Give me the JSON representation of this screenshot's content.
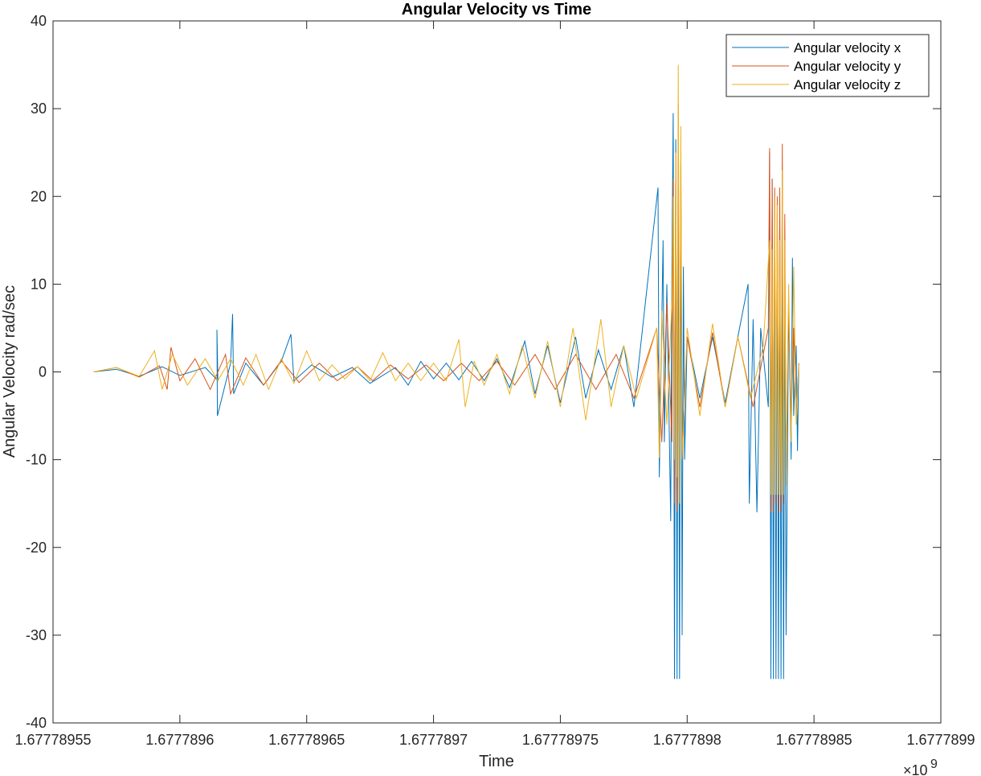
{
  "chart_data": {
    "type": "line",
    "title": "Angular Velocity vs Time",
    "xlabel": "Time",
    "ylabel": "Angular Velocity rad/sec",
    "x_exponent_base": "×10",
    "x_exponent_power": "9",
    "xlim": [
      1.67778955,
      1.6777899
    ],
    "ylim": [
      -40,
      40
    ],
    "x_ticks": [
      {
        "value": 1.67778955,
        "label": "1.67778955"
      },
      {
        "value": 1.6777896,
        "label": "1.6777896"
      },
      {
        "value": 1.67778965,
        "label": "1.67778965"
      },
      {
        "value": 1.6777897,
        "label": "1.6777897"
      },
      {
        "value": 1.67778975,
        "label": "1.67778975"
      },
      {
        "value": 1.6777898,
        "label": "1.6777898"
      },
      {
        "value": 1.67778985,
        "label": "1.67778985"
      },
      {
        "value": 1.6777899,
        "label": "1.6777899"
      }
    ],
    "y_ticks": [
      {
        "value": 40,
        "label": "40"
      },
      {
        "value": 30,
        "label": "30"
      },
      {
        "value": 20,
        "label": "20"
      },
      {
        "value": 10,
        "label": "10"
      },
      {
        "value": 0,
        "label": "0"
      },
      {
        "value": -10,
        "label": "-10"
      },
      {
        "value": -20,
        "label": "-20"
      },
      {
        "value": -30,
        "label": "-30"
      },
      {
        "value": -40,
        "label": "-40"
      }
    ],
    "grid": false,
    "legend_position": "top-right",
    "series": [
      {
        "name": "Angular velocity x",
        "color": "#0072BD",
        "points": [
          [
            1.677789566,
            0.0
          ],
          [
            1.677789575,
            0.3
          ],
          [
            1.677789584,
            -0.5
          ],
          [
            1.677789593,
            0.6
          ],
          [
            1.6777896,
            -0.4
          ],
          [
            1.67778961,
            0.5
          ],
          [
            1.677789615,
            -1.0
          ],
          [
            1.6777896146,
            4.8
          ],
          [
            1.6777896148,
            -5.0
          ],
          [
            1.67778962,
            1.0
          ],
          [
            1.6777896208,
            6.6
          ],
          [
            1.6777896212,
            -2.5
          ],
          [
            1.677789626,
            1.0
          ],
          [
            1.677789633,
            -1.5
          ],
          [
            1.67778964,
            1.2
          ],
          [
            1.6777896438,
            4.3
          ],
          [
            1.677789645,
            -1.0
          ],
          [
            1.677789652,
            0.8
          ],
          [
            1.67778966,
            -0.6
          ],
          [
            1.677789668,
            0.5
          ],
          [
            1.677789675,
            -1.3
          ],
          [
            1.677789685,
            0.5
          ],
          [
            1.67778969,
            -1.5
          ],
          [
            1.677789695,
            1.2
          ],
          [
            1.6777897,
            -0.8
          ],
          [
            1.677789705,
            1.0
          ],
          [
            1.67778971,
            -0.9
          ],
          [
            1.677789715,
            1.2
          ],
          [
            1.67778972,
            -1.0
          ],
          [
            1.677789725,
            1.5
          ],
          [
            1.67778973,
            -1.8
          ],
          [
            1.677789736,
            3.5
          ],
          [
            1.67778974,
            -2.5
          ],
          [
            1.677789745,
            3.0
          ],
          [
            1.67778975,
            -3.5
          ],
          [
            1.677789756,
            4.0
          ],
          [
            1.67778976,
            -3.0
          ],
          [
            1.677789765,
            2.5
          ],
          [
            1.67778977,
            -2.0
          ],
          [
            1.677789775,
            3.0
          ],
          [
            1.677789779,
            -4.0
          ],
          [
            1.6777897885,
            21.0
          ],
          [
            1.677789789,
            -12.0
          ],
          [
            1.6777897905,
            15.0
          ],
          [
            1.677789791,
            -8.0
          ],
          [
            1.677789792,
            10.0
          ],
          [
            1.6777897935,
            -17.0
          ],
          [
            1.677789794,
            12.0
          ],
          [
            1.6777897945,
            29.5
          ],
          [
            1.677789795,
            -35.0
          ],
          [
            1.6777897955,
            26.5
          ],
          [
            1.677789796,
            -35.0
          ],
          [
            1.6777897965,
            26.5
          ],
          [
            1.677789797,
            -35.0
          ],
          [
            1.6777897975,
            23.5
          ],
          [
            1.677789798,
            -30.0
          ],
          [
            1.6777897985,
            12.0
          ],
          [
            1.677789799,
            -10.0
          ],
          [
            1.6777898,
            4.0
          ],
          [
            1.677789805,
            -3.0
          ],
          [
            1.67778981,
            4.0
          ],
          [
            1.677789815,
            -3.5
          ],
          [
            1.67778982,
            4.0
          ],
          [
            1.677789824,
            10.0
          ],
          [
            1.6777898245,
            -15.0
          ],
          [
            1.677789826,
            6.0
          ],
          [
            1.6777898275,
            -16.0
          ],
          [
            1.677789829,
            5.0
          ],
          [
            1.677789832,
            -4.0
          ],
          [
            1.6777898325,
            25.0
          ],
          [
            1.677789833,
            -35.0
          ],
          [
            1.6777898335,
            22.0
          ],
          [
            1.677789834,
            -35.0
          ],
          [
            1.6777898345,
            20.0
          ],
          [
            1.677789835,
            -35.0
          ],
          [
            1.6777898355,
            18.0
          ],
          [
            1.677789836,
            -35.0
          ],
          [
            1.6777898365,
            17.0
          ],
          [
            1.677789837,
            -35.0
          ],
          [
            1.6777898375,
            15.0
          ],
          [
            1.677789838,
            -35.0
          ],
          [
            1.6777898385,
            12.0
          ],
          [
            1.677789839,
            -30.0
          ],
          [
            1.67778984,
            8.0
          ],
          [
            1.677789841,
            -10.0
          ],
          [
            1.6777898415,
            13.0
          ],
          [
            1.677789842,
            -5.0
          ],
          [
            1.677789843,
            3.0
          ],
          [
            1.6777898435,
            -9.0
          ],
          [
            1.677789844,
            1.0
          ]
        ]
      },
      {
        "name": "Angular velocity y",
        "color": "#D95319",
        "points": [
          [
            1.677789566,
            0.0
          ],
          [
            1.677789575,
            0.5
          ],
          [
            1.677789584,
            -0.6
          ],
          [
            1.677789592,
            0.7
          ],
          [
            1.677789595,
            -2.0
          ],
          [
            1.6777895965,
            2.8
          ],
          [
            1.6777896,
            -1.0
          ],
          [
            1.677789606,
            1.5
          ],
          [
            1.677789612,
            -2.0
          ],
          [
            1.677789618,
            2.0
          ],
          [
            1.67778962,
            -2.5
          ],
          [
            1.677789626,
            1.6
          ],
          [
            1.677789633,
            -1.5
          ],
          [
            1.67778964,
            1.3
          ],
          [
            1.677789647,
            -1.2
          ],
          [
            1.677789655,
            1.0
          ],
          [
            1.677789662,
            -1.0
          ],
          [
            1.67778967,
            0.6
          ],
          [
            1.677789676,
            -1.0
          ],
          [
            1.677789683,
            0.8
          ],
          [
            1.67778969,
            -0.8
          ],
          [
            1.677789697,
            0.8
          ],
          [
            1.677789704,
            -1.0
          ],
          [
            1.677789711,
            1.0
          ],
          [
            1.677789718,
            -1.0
          ],
          [
            1.677789725,
            1.2
          ],
          [
            1.677789732,
            -1.5
          ],
          [
            1.67778974,
            2.0
          ],
          [
            1.677789748,
            -2.0
          ],
          [
            1.677789756,
            2.0
          ],
          [
            1.677789764,
            -2.0
          ],
          [
            1.677789772,
            2.0
          ],
          [
            1.677789779,
            -3.0
          ],
          [
            1.677789788,
            5.0
          ],
          [
            1.67778979,
            -8.0
          ],
          [
            1.677789792,
            8.0
          ],
          [
            1.677789794,
            -8.0
          ],
          [
            1.6777897945,
            22.0
          ],
          [
            1.677789795,
            -15.0
          ],
          [
            1.6777897955,
            25.0
          ],
          [
            1.677789796,
            -16.0
          ],
          [
            1.6777897965,
            30.5
          ],
          [
            1.677789797,
            -15.0
          ],
          [
            1.6777897975,
            24.0
          ],
          [
            1.677789798,
            -10.0
          ],
          [
            1.6777898,
            4.0
          ],
          [
            1.677789805,
            -4.0
          ],
          [
            1.67778981,
            4.5
          ],
          [
            1.677789815,
            -4.0
          ],
          [
            1.67778982,
            4.0
          ],
          [
            1.677789826,
            -4.0
          ],
          [
            1.677789832,
            5.0
          ],
          [
            1.6777898325,
            25.5
          ],
          [
            1.677789833,
            -16.0
          ],
          [
            1.6777898335,
            22.0
          ],
          [
            1.677789834,
            -16.0
          ],
          [
            1.6777898345,
            21.0
          ],
          [
            1.677789835,
            -15.0
          ],
          [
            1.6777898355,
            20.0
          ],
          [
            1.677789836,
            -16.0
          ],
          [
            1.6777898365,
            21.0
          ],
          [
            1.677789837,
            -16.0
          ],
          [
            1.6777898375,
            26.0
          ],
          [
            1.677789838,
            -15.0
          ],
          [
            1.6777898385,
            18.0
          ],
          [
            1.677789839,
            -12.0
          ],
          [
            1.67778984,
            8.0
          ],
          [
            1.677789841,
            -6.0
          ],
          [
            1.677789842,
            5.0
          ],
          [
            1.677789843,
            -5.0
          ],
          [
            1.677789844,
            1.0
          ]
        ]
      },
      {
        "name": "Angular velocity z",
        "color": "#EDB120",
        "points": [
          [
            1.677789566,
            0.0
          ],
          [
            1.677789575,
            0.5
          ],
          [
            1.677789584,
            -0.5
          ],
          [
            1.67778959,
            2.4
          ],
          [
            1.677789593,
            -2.0
          ],
          [
            1.677789597,
            2.0
          ],
          [
            1.677789603,
            -1.5
          ],
          [
            1.67778961,
            1.5
          ],
          [
            1.677789615,
            -1.0
          ],
          [
            1.67778962,
            1.5
          ],
          [
            1.677789625,
            -1.5
          ],
          [
            1.67778963,
            2.0
          ],
          [
            1.677789635,
            -2.0
          ],
          [
            1.67778964,
            1.5
          ],
          [
            1.677789645,
            -1.3
          ],
          [
            1.67778965,
            2.4
          ],
          [
            1.677789655,
            -1.0
          ],
          [
            1.67778966,
            0.8
          ],
          [
            1.677789665,
            -0.8
          ],
          [
            1.67778967,
            0.6
          ],
          [
            1.677789675,
            -1.0
          ],
          [
            1.67778968,
            2.2
          ],
          [
            1.677789685,
            -1.0
          ],
          [
            1.67778969,
            1.0
          ],
          [
            1.677789695,
            -1.0
          ],
          [
            1.6777897,
            1.0
          ],
          [
            1.677789705,
            -1.0
          ],
          [
            1.67778971,
            3.7
          ],
          [
            1.6777897125,
            -4.0
          ],
          [
            1.677789716,
            1.2
          ],
          [
            1.67778972,
            -1.5
          ],
          [
            1.677789725,
            2.0
          ],
          [
            1.67778973,
            -2.5
          ],
          [
            1.677789735,
            3.0
          ],
          [
            1.67778974,
            -3.0
          ],
          [
            1.677789745,
            3.5
          ],
          [
            1.67778975,
            -4.0
          ],
          [
            1.677789755,
            5.0
          ],
          [
            1.67778976,
            -5.5
          ],
          [
            1.677789766,
            6.0
          ],
          [
            1.67778977,
            -4.0
          ],
          [
            1.677789775,
            3.0
          ],
          [
            1.67778978,
            -3.0
          ],
          [
            1.677789788,
            5.0
          ],
          [
            1.677789789,
            -9.8
          ],
          [
            1.67778979,
            7.0
          ],
          [
            1.677789792,
            -6.0
          ],
          [
            1.677789794,
            8.0
          ],
          [
            1.6777897945,
            20.0
          ],
          [
            1.677789795,
            -10.0
          ],
          [
            1.6777897955,
            25.0
          ],
          [
            1.677789796,
            -12.0
          ],
          [
            1.6777897965,
            35.0
          ],
          [
            1.677789797,
            -15.0
          ],
          [
            1.6777897975,
            28.0
          ],
          [
            1.677789798,
            -10.0
          ],
          [
            1.6777898,
            5.0
          ],
          [
            1.677789805,
            -5.0
          ],
          [
            1.67778981,
            5.5
          ],
          [
            1.677789815,
            -4.0
          ],
          [
            1.67778982,
            4.0
          ],
          [
            1.677789825,
            -3.0
          ],
          [
            1.67778983,
            3.0
          ],
          [
            1.6777898325,
            15.0
          ],
          [
            1.677789833,
            -14.0
          ],
          [
            1.6777898335,
            14.0
          ],
          [
            1.677789834,
            -14.0
          ],
          [
            1.6777898345,
            20.0
          ],
          [
            1.677789835,
            -14.0
          ],
          [
            1.6777898355,
            19.0
          ],
          [
            1.677789836,
            -14.0
          ],
          [
            1.6777898365,
            15.0
          ],
          [
            1.677789837,
            -14.0
          ],
          [
            1.6777898375,
            23.0
          ],
          [
            1.677789838,
            -14.0
          ],
          [
            1.6777898385,
            15.0
          ],
          [
            1.677789839,
            -13.0
          ],
          [
            1.67778984,
            10.0
          ],
          [
            1.677789841,
            -8.0
          ],
          [
            1.677789842,
            12.0
          ],
          [
            1.677789843,
            -6.0
          ],
          [
            1.677789844,
            1.0
          ]
        ]
      }
    ]
  }
}
